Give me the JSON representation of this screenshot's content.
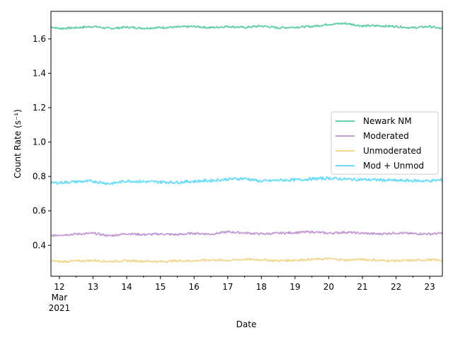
{
  "chart_data": {
    "type": "line",
    "xlabel": "Date",
    "ylabel": "Count Rate (s⁻¹)",
    "x_range": [
      "2021-03-11T18:00",
      "2021-03-23T09:00"
    ],
    "ylim": [
      0.22,
      1.76
    ],
    "y_ticks": [
      "0.4",
      "0.6",
      "0.8",
      "1.0",
      "1.2",
      "1.4",
      "1.6"
    ],
    "x_ticks": [
      {
        "date": "2021-03-12",
        "label": "12",
        "sub": [
          "Mar",
          "2021"
        ]
      },
      {
        "date": "2021-03-13",
        "label": "13"
      },
      {
        "date": "2021-03-14",
        "label": "14"
      },
      {
        "date": "2021-03-15",
        "label": "15"
      },
      {
        "date": "2021-03-16",
        "label": "16"
      },
      {
        "date": "2021-03-17",
        "label": "17"
      },
      {
        "date": "2021-03-18",
        "label": "18"
      },
      {
        "date": "2021-03-19",
        "label": "19"
      },
      {
        "date": "2021-03-20",
        "label": "20"
      },
      {
        "date": "2021-03-21",
        "label": "21"
      },
      {
        "date": "2021-03-22",
        "label": "22"
      },
      {
        "date": "2021-03-23",
        "label": "23"
      }
    ],
    "grid": false,
    "legend_position": "center-right",
    "x": [
      "2021-03-11T18:00",
      "2021-03-12T00:00",
      "2021-03-12T12:00",
      "2021-03-13T00:00",
      "2021-03-13T12:00",
      "2021-03-14T00:00",
      "2021-03-14T12:00",
      "2021-03-15T00:00",
      "2021-03-15T12:00",
      "2021-03-16T00:00",
      "2021-03-16T12:00",
      "2021-03-17T00:00",
      "2021-03-17T12:00",
      "2021-03-18T00:00",
      "2021-03-18T12:00",
      "2021-03-19T00:00",
      "2021-03-19T12:00",
      "2021-03-20T00:00",
      "2021-03-20T12:00",
      "2021-03-21T00:00",
      "2021-03-21T12:00",
      "2021-03-22T00:00",
      "2021-03-22T12:00",
      "2021-03-23T00:00",
      "2021-03-23T09:00"
    ],
    "series": [
      {
        "name": "Newark NM",
        "color": "#66cdaa",
        "values": [
          1.67,
          1.66,
          1.665,
          1.672,
          1.66,
          1.668,
          1.662,
          1.666,
          1.668,
          1.672,
          1.665,
          1.672,
          1.666,
          1.675,
          1.664,
          1.668,
          1.672,
          1.685,
          1.69,
          1.675,
          1.676,
          1.672,
          1.664,
          1.672,
          1.658
        ]
      },
      {
        "name": "Moderated",
        "color": "#c39bd3",
        "values": [
          0.455,
          0.46,
          0.465,
          0.47,
          0.455,
          0.468,
          0.462,
          0.466,
          0.462,
          0.47,
          0.465,
          0.478,
          0.472,
          0.466,
          0.47,
          0.474,
          0.478,
          0.47,
          0.476,
          0.47,
          0.466,
          0.472,
          0.468,
          0.466,
          0.47
        ]
      },
      {
        "name": "Unmoderated",
        "color": "#f0d890",
        "values": [
          0.31,
          0.305,
          0.308,
          0.312,
          0.306,
          0.31,
          0.308,
          0.305,
          0.31,
          0.31,
          0.315,
          0.312,
          0.318,
          0.316,
          0.31,
          0.314,
          0.318,
          0.322,
          0.314,
          0.318,
          0.312,
          0.31,
          0.312,
          0.316,
          0.312
        ]
      },
      {
        "name": "Mod + Unmod",
        "color": "#6cdcf6",
        "values": [
          0.762,
          0.764,
          0.77,
          0.772,
          0.758,
          0.774,
          0.77,
          0.768,
          0.766,
          0.772,
          0.776,
          0.784,
          0.788,
          0.772,
          0.778,
          0.78,
          0.786,
          0.79,
          0.784,
          0.782,
          0.78,
          0.776,
          0.776,
          0.774,
          0.78
        ]
      }
    ]
  }
}
